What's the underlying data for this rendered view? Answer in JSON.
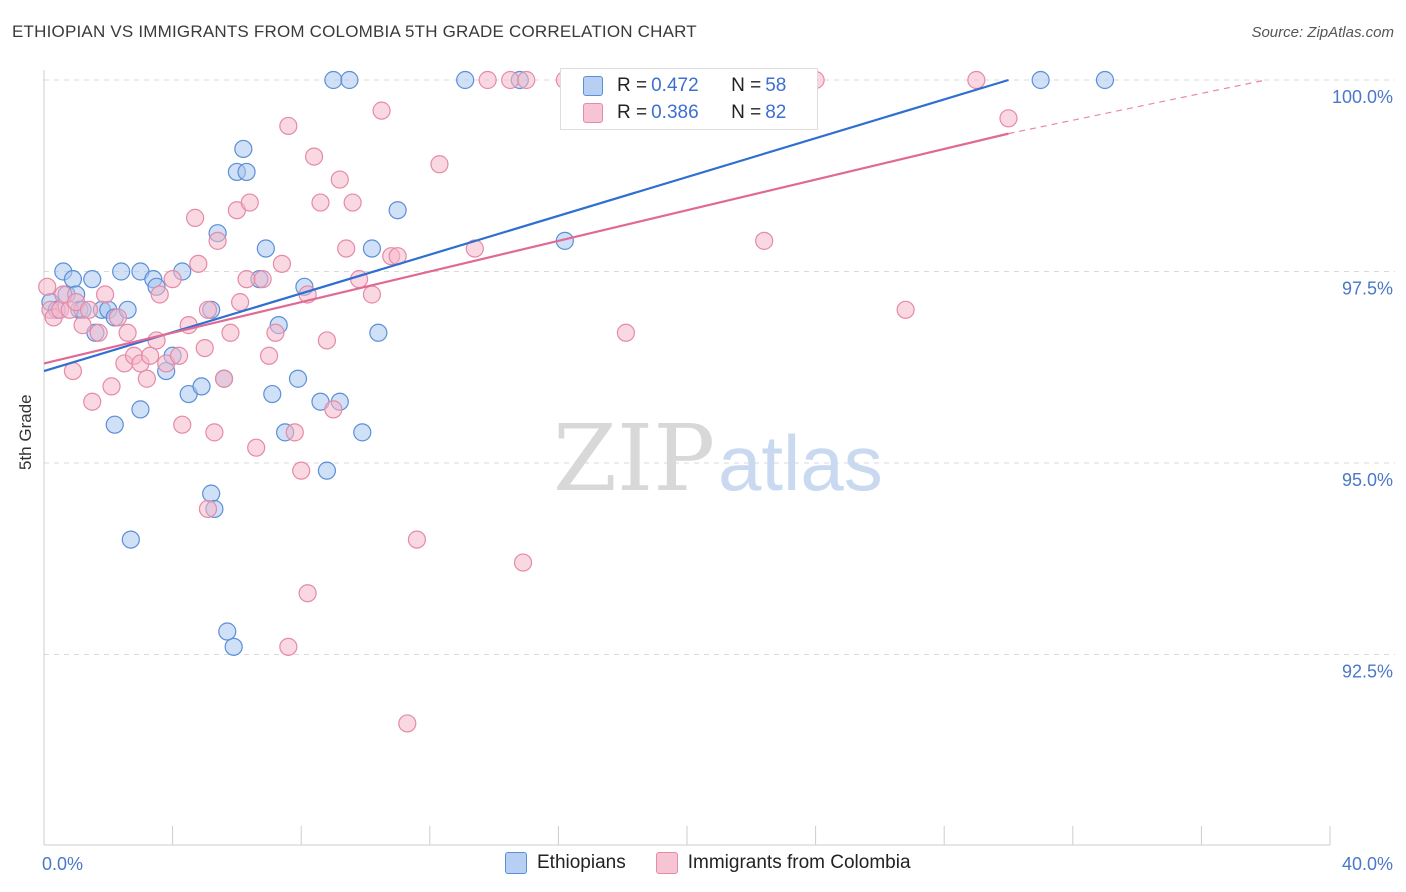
{
  "header": {
    "title": "ETHIOPIAN VS IMMIGRANTS FROM COLOMBIA 5TH GRADE CORRELATION CHART",
    "source": "Source: ZipAtlas.com"
  },
  "watermark": {
    "zip": "ZIP",
    "atlas": "atlas"
  },
  "legend": {
    "r_label": "R =",
    "n_label": "N =",
    "series": [
      {
        "name": "Ethiopians",
        "r": "0.472",
        "n": "58"
      },
      {
        "name": "Immigrants from Colombia",
        "r": "0.386",
        "n": "82"
      }
    ]
  },
  "colors": {
    "blue_fill": "#a9c6f0",
    "blue_stroke": "#5b8fd6",
    "blue_line": "#2f6fd0",
    "pink_fill": "#f5b8cb",
    "pink_stroke": "#e58aa8",
    "pink_line": "#e06a95",
    "grid": "#d9d9d9",
    "tick_text": "#4a78c8"
  },
  "chart_data": {
    "type": "scatter",
    "title": "ETHIOPIAN VS IMMIGRANTS FROM COLOMBIA 5TH GRADE CORRELATION CHART",
    "xlabel": "",
    "ylabel": "5th Grade",
    "xlim": [
      0,
      40
    ],
    "ylim": [
      90.0,
      100.2
    ],
    "x_tick_labels": [
      "0.0%",
      "40.0%"
    ],
    "y_ticks": [
      100.0,
      97.5,
      95.0,
      92.5
    ],
    "y_tick_labels": [
      "100.0%",
      "97.5%",
      "95.0%",
      "92.5%"
    ],
    "series": [
      {
        "name": "Ethiopians",
        "color": "#5b8fd6",
        "trend": {
          "x": [
            0.0,
            30.0
          ],
          "y": [
            96.2,
            100.0
          ]
        },
        "points": [
          [
            0.2,
            97.1
          ],
          [
            0.4,
            97.0
          ],
          [
            0.6,
            97.5
          ],
          [
            0.7,
            97.2
          ],
          [
            0.9,
            97.4
          ],
          [
            1.0,
            97.2
          ],
          [
            1.1,
            97.0
          ],
          [
            1.2,
            97.0
          ],
          [
            1.5,
            97.4
          ],
          [
            1.6,
            96.7
          ],
          [
            1.8,
            97.0
          ],
          [
            2.0,
            97.0
          ],
          [
            2.2,
            96.9
          ],
          [
            2.4,
            97.5
          ],
          [
            2.6,
            97.0
          ],
          [
            3.0,
            97.5
          ],
          [
            3.4,
            97.4
          ],
          [
            3.5,
            97.3
          ],
          [
            3.8,
            96.2
          ],
          [
            4.0,
            96.4
          ],
          [
            4.3,
            97.5
          ],
          [
            4.5,
            95.9
          ],
          [
            4.9,
            96.0
          ],
          [
            5.2,
            97.0
          ],
          [
            5.6,
            96.1
          ],
          [
            5.2,
            94.6
          ],
          [
            5.3,
            94.4
          ],
          [
            3.0,
            95.7
          ],
          [
            2.2,
            95.5
          ],
          [
            2.7,
            94.0
          ],
          [
            5.4,
            98.0
          ],
          [
            5.9,
            92.6
          ],
          [
            5.7,
            92.8
          ],
          [
            6.0,
            98.8
          ],
          [
            6.2,
            99.1
          ],
          [
            6.3,
            98.8
          ],
          [
            6.7,
            97.4
          ],
          [
            6.9,
            97.8
          ],
          [
            7.1,
            95.9
          ],
          [
            7.3,
            96.8
          ],
          [
            7.5,
            95.4
          ],
          [
            7.9,
            96.1
          ],
          [
            8.1,
            97.3
          ],
          [
            8.6,
            95.8
          ],
          [
            8.8,
            94.9
          ],
          [
            9.2,
            95.8
          ],
          [
            9.9,
            95.4
          ],
          [
            10.2,
            97.8
          ],
          [
            10.4,
            96.7
          ],
          [
            11.0,
            98.3
          ],
          [
            9.0,
            100.0
          ],
          [
            9.5,
            100.0
          ],
          [
            13.1,
            100.0
          ],
          [
            14.8,
            100.0
          ],
          [
            16.2,
            97.9
          ],
          [
            20.0,
            100.0
          ],
          [
            31.0,
            100.0
          ],
          [
            33.0,
            100.0
          ]
        ]
      },
      {
        "name": "Immigrants from Colombia",
        "color": "#e58aa8",
        "trend": {
          "x": [
            0.0,
            30.0
          ],
          "y": [
            96.3,
            99.3
          ]
        },
        "trend_dashed": {
          "x": [
            30.0,
            38.0
          ],
          "y": [
            99.3,
            100.0
          ]
        },
        "points": [
          [
            0.1,
            97.3
          ],
          [
            0.2,
            97.0
          ],
          [
            0.3,
            96.9
          ],
          [
            0.5,
            97.0
          ],
          [
            0.6,
            97.2
          ],
          [
            0.8,
            97.0
          ],
          [
            0.9,
            96.2
          ],
          [
            1.0,
            97.1
          ],
          [
            1.2,
            96.8
          ],
          [
            1.4,
            97.0
          ],
          [
            1.5,
            95.8
          ],
          [
            1.7,
            96.7
          ],
          [
            1.9,
            97.2
          ],
          [
            2.1,
            96.0
          ],
          [
            2.3,
            96.9
          ],
          [
            2.5,
            96.3
          ],
          [
            2.6,
            96.7
          ],
          [
            2.8,
            96.4
          ],
          [
            3.0,
            96.3
          ],
          [
            3.2,
            96.1
          ],
          [
            3.3,
            96.4
          ],
          [
            3.5,
            96.6
          ],
          [
            3.6,
            97.2
          ],
          [
            3.8,
            96.3
          ],
          [
            4.0,
            97.4
          ],
          [
            4.2,
            96.4
          ],
          [
            4.3,
            95.5
          ],
          [
            4.5,
            96.8
          ],
          [
            4.7,
            98.2
          ],
          [
            4.8,
            97.6
          ],
          [
            5.0,
            96.5
          ],
          [
            5.1,
            97.0
          ],
          [
            5.3,
            95.4
          ],
          [
            5.4,
            97.9
          ],
          [
            5.6,
            96.1
          ],
          [
            5.8,
            96.7
          ],
          [
            6.0,
            98.3
          ],
          [
            6.1,
            97.1
          ],
          [
            6.3,
            97.4
          ],
          [
            6.4,
            98.4
          ],
          [
            6.6,
            95.2
          ],
          [
            6.8,
            97.4
          ],
          [
            7.0,
            96.4
          ],
          [
            7.2,
            96.7
          ],
          [
            7.4,
            97.6
          ],
          [
            7.6,
            99.4
          ],
          [
            7.8,
            95.4
          ],
          [
            8.0,
            94.9
          ],
          [
            8.2,
            97.2
          ],
          [
            8.4,
            99.0
          ],
          [
            8.6,
            98.4
          ],
          [
            8.8,
            96.6
          ],
          [
            9.0,
            95.7
          ],
          [
            9.2,
            98.7
          ],
          [
            9.4,
            97.8
          ],
          [
            9.6,
            98.4
          ],
          [
            9.8,
            97.4
          ],
          [
            10.2,
            97.2
          ],
          [
            10.5,
            99.6
          ],
          [
            10.8,
            97.7
          ],
          [
            11.0,
            97.7
          ],
          [
            11.3,
            91.6
          ],
          [
            11.6,
            94.0
          ],
          [
            12.3,
            98.9
          ],
          [
            8.2,
            93.3
          ],
          [
            7.6,
            92.6
          ],
          [
            5.1,
            94.4
          ],
          [
            13.4,
            97.8
          ],
          [
            13.8,
            100.0
          ],
          [
            14.5,
            100.0
          ],
          [
            14.9,
            93.7
          ],
          [
            15.0,
            100.0
          ],
          [
            16.2,
            100.0
          ],
          [
            17.5,
            100.0
          ],
          [
            18.1,
            96.7
          ],
          [
            20.1,
            100.0
          ],
          [
            24.0,
            100.0
          ],
          [
            22.4,
            97.9
          ],
          [
            26.8,
            97.0
          ],
          [
            29.0,
            100.0
          ],
          [
            30.0,
            99.5
          ],
          [
            20.7,
            100.0
          ]
        ]
      }
    ]
  }
}
